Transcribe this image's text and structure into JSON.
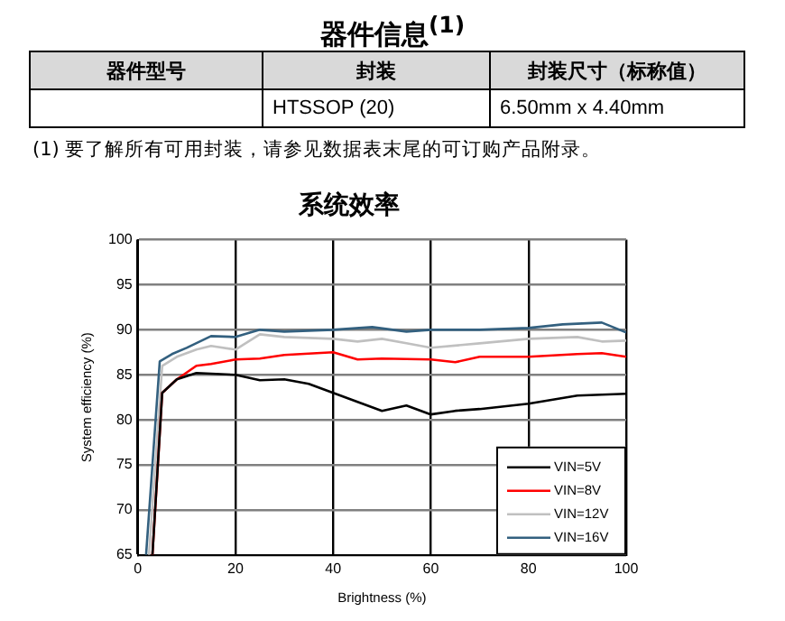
{
  "chart_data": [
    {
      "type": "other",
      "title": "器件信息$^{(1)}$",
      "categories": [
        "器件型号",
        "封装",
        "封装尺寸（标称值）"
      ],
      "annotations": [
        "HTSSOP (20)",
        "6.50mm x 4.40mm",
        "(1)  要了解所有可用封装，请参见数据表末尾的可订购产品附录。"
      ]
    },
    {
      "type": "line",
      "title": "系统效率",
      "xlabel": "Brightness (%)",
      "ylabel": "System efficiency (%)",
      "xlim": [
        0,
        100
      ],
      "xticks": [
        0,
        20,
        40,
        60,
        80,
        100
      ],
      "ylim": [
        65,
        100
      ],
      "yticks": [
        65,
        70,
        75,
        80,
        85,
        90,
        95,
        100
      ],
      "grid": true,
      "legend": "bottom right",
      "marker": "none",
      "line_style": "solid",
      "series": [
        {
          "name": "VIN=5V",
          "color": "#000000",
          "x": [
            3,
            5,
            8,
            12,
            20,
            25,
            30,
            35,
            40,
            45,
            50,
            55,
            60,
            65,
            70,
            80,
            90,
            100
          ],
          "values": [
            65,
            83,
            84.5,
            85.2,
            85,
            84.4,
            84.5,
            84,
            83,
            82,
            81,
            81.6,
            80.6,
            81,
            81.2,
            81.8,
            82.7,
            82.9
          ]
        },
        {
          "name": "VIN=8V",
          "color": "#ff0000",
          "x": [
            3,
            5,
            8,
            12,
            15,
            20,
            25,
            30,
            40,
            45,
            50,
            60,
            65,
            70,
            80,
            90,
            95,
            100
          ],
          "values": [
            65,
            83,
            84.5,
            86,
            86.2,
            86.7,
            86.8,
            87.2,
            87.5,
            86.7,
            86.8,
            86.7,
            86.4,
            87,
            87,
            87.3,
            87.4,
            87
          ]
        },
        {
          "name": "VIN=12V",
          "color": "#c0c0c0",
          "x": [
            2.3,
            5,
            8,
            12,
            15,
            20,
            25,
            30,
            40,
            45,
            50,
            55,
            60,
            70,
            80,
            90,
            95,
            100
          ],
          "values": [
            65,
            86,
            87,
            87.8,
            88.2,
            87.8,
            89.5,
            89.2,
            89,
            88.7,
            89,
            88.5,
            88,
            88.5,
            89,
            89.2,
            88.7,
            88.8
          ]
        },
        {
          "name": "VIN=16V",
          "color": "#33607f",
          "x": [
            1.7,
            4.5,
            7,
            10,
            15,
            20,
            25,
            30,
            40,
            48,
            55,
            60,
            70,
            80,
            87,
            95,
            100
          ],
          "values": [
            65,
            86.5,
            87.3,
            88,
            89.3,
            89.2,
            90,
            89.8,
            90,
            90.3,
            89.8,
            90,
            90,
            90.2,
            90.6,
            90.8,
            89.7
          ]
        }
      ]
    }
  ]
}
